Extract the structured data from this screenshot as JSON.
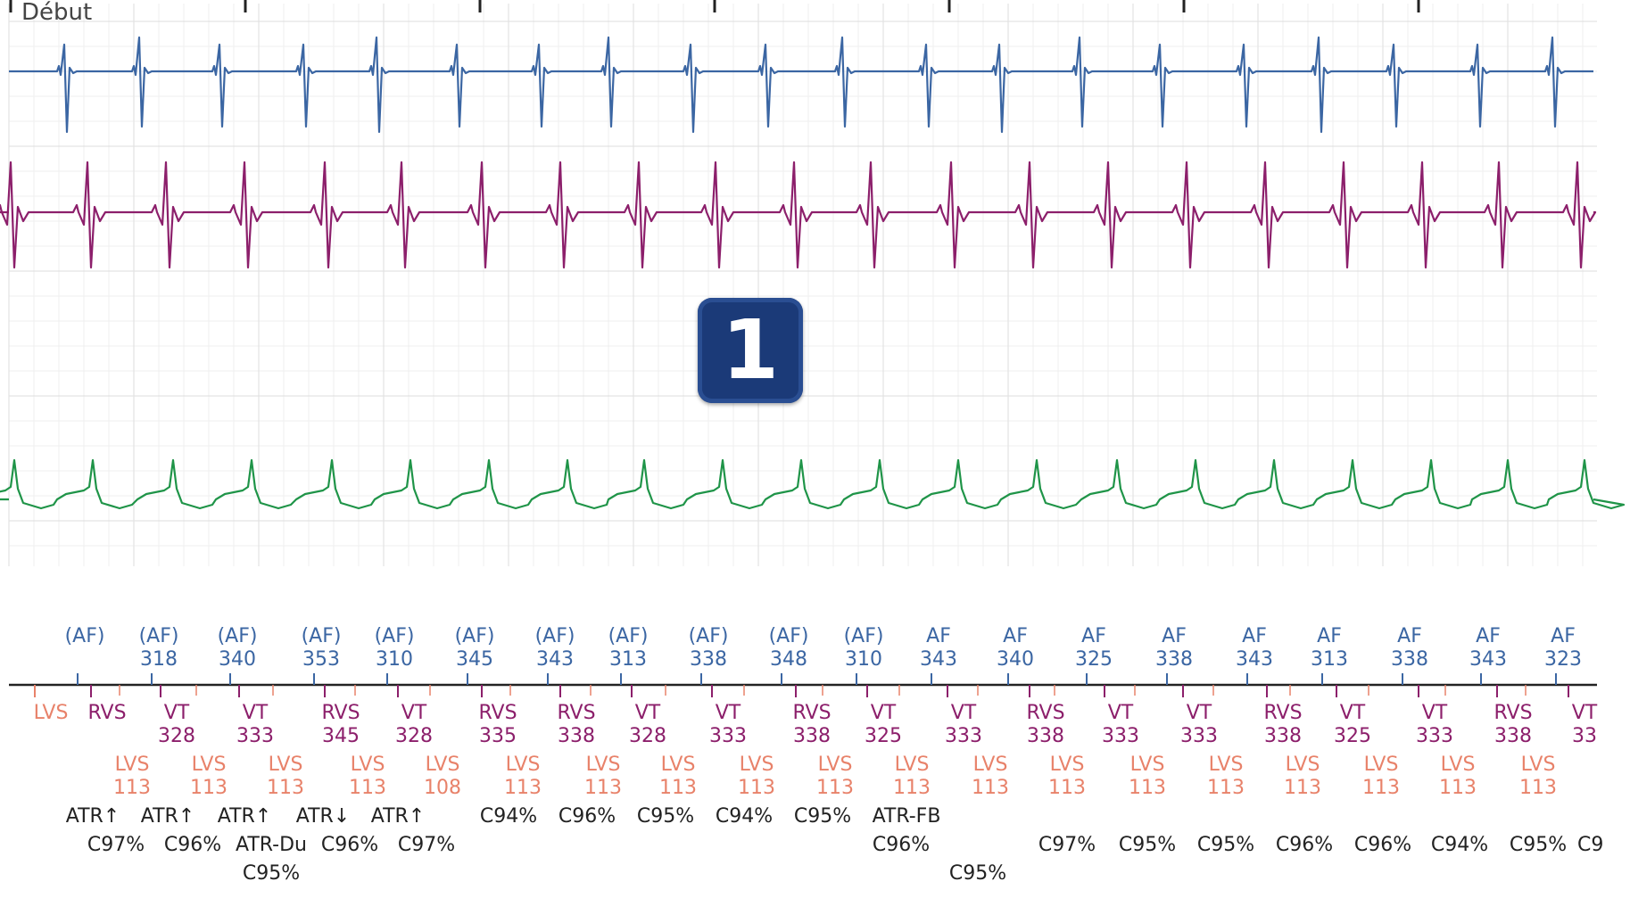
{
  "start_label": "Début",
  "badge_number": "1",
  "colors": {
    "atrial": "#3b66a3",
    "rv": "#8c1f6b",
    "surface": "#1f9448",
    "lv": "#e8826a",
    "status": "#222222",
    "grid_major": "#e3e3e3",
    "grid_minor": "#efefef"
  },
  "traces": [
    "atrial-egm-trace",
    "rv-egm-trace",
    "lv-egm-trace-blank",
    "surface-ecg-trace"
  ],
  "atrial_markers": [
    {
      "label": "(AF)",
      "interval": ""
    },
    {
      "label": "(AF)",
      "interval": "318"
    },
    {
      "label": "(AF)",
      "interval": "340"
    },
    {
      "label": "(AF)",
      "interval": "353"
    },
    {
      "label": "(AF)",
      "interval": "310"
    },
    {
      "label": "(AF)",
      "interval": "345"
    },
    {
      "label": "(AF)",
      "interval": "343"
    },
    {
      "label": "(AF)",
      "interval": "313"
    },
    {
      "label": "(AF)",
      "interval": "338"
    },
    {
      "label": "(AF)",
      "interval": "348"
    },
    {
      "label": "(AF)",
      "interval": "310"
    },
    {
      "label": "AF",
      "interval": "343"
    },
    {
      "label": "AF",
      "interval": "340"
    },
    {
      "label": "AF",
      "interval": "325"
    },
    {
      "label": "AF",
      "interval": "338"
    },
    {
      "label": "AF",
      "interval": "343"
    },
    {
      "label": "AF",
      "interval": "313"
    },
    {
      "label": "AF",
      "interval": "338"
    },
    {
      "label": "AF",
      "interval": "343"
    },
    {
      "label": "AF",
      "interval": "323"
    }
  ],
  "ventricular_markers": [
    {
      "label": "LVS",
      "interval": "",
      "kind": "lv"
    },
    {
      "label": "RVS",
      "interval": "",
      "kind": "rv"
    },
    {
      "label": "VT",
      "interval": "328",
      "kind": "rv"
    },
    {
      "label": "VT",
      "interval": "333",
      "kind": "rv"
    },
    {
      "label": "RVS",
      "interval": "345",
      "kind": "rv"
    },
    {
      "label": "VT",
      "interval": "328",
      "kind": "rv"
    },
    {
      "label": "RVS",
      "interval": "335",
      "kind": "rv"
    },
    {
      "label": "RVS",
      "interval": "338",
      "kind": "rv"
    },
    {
      "label": "VT",
      "interval": "328",
      "kind": "rv"
    },
    {
      "label": "VT",
      "interval": "333",
      "kind": "rv"
    },
    {
      "label": "RVS",
      "interval": "338",
      "kind": "rv"
    },
    {
      "label": "VT",
      "interval": "325",
      "kind": "rv"
    },
    {
      "label": "VT",
      "interval": "333",
      "kind": "rv"
    },
    {
      "label": "RVS",
      "interval": "338",
      "kind": "rv"
    },
    {
      "label": "VT",
      "interval": "333",
      "kind": "rv"
    },
    {
      "label": "VT",
      "interval": "333",
      "kind": "rv"
    },
    {
      "label": "RVS",
      "interval": "338",
      "kind": "rv"
    },
    {
      "label": "VT",
      "interval": "325",
      "kind": "rv"
    },
    {
      "label": "VT",
      "interval": "333",
      "kind": "rv"
    },
    {
      "label": "RVS",
      "interval": "338",
      "kind": "rv"
    },
    {
      "label": "VT",
      "interval": "33",
      "kind": "rv"
    }
  ],
  "lv_markers": [
    {
      "label": "LVS",
      "interval": "113"
    },
    {
      "label": "LVS",
      "interval": "113"
    },
    {
      "label": "LVS",
      "interval": "113"
    },
    {
      "label": "LVS",
      "interval": "113"
    },
    {
      "label": "LVS",
      "interval": "108"
    },
    {
      "label": "LVS",
      "interval": "113"
    },
    {
      "label": "LVS",
      "interval": "113"
    },
    {
      "label": "LVS",
      "interval": "113"
    },
    {
      "label": "LVS",
      "interval": "113"
    },
    {
      "label": "LVS",
      "interval": "113"
    },
    {
      "label": "LVS",
      "interval": "113"
    },
    {
      "label": "LVS",
      "interval": "113"
    },
    {
      "label": "LVS",
      "interval": "113"
    },
    {
      "label": "LVS",
      "interval": "113"
    },
    {
      "label": "LVS",
      "interval": "113"
    },
    {
      "label": "LVS",
      "interval": "113"
    },
    {
      "label": "LVS",
      "interval": "113"
    },
    {
      "label": "LVS",
      "interval": "113"
    },
    {
      "label": "LVS",
      "interval": "113"
    }
  ],
  "status_markers": [
    {
      "lines": [
        "ATR↑",
        "C97%"
      ]
    },
    {
      "lines": [
        "ATR↑",
        "C96%"
      ]
    },
    {
      "lines": [
        "ATR↑",
        "ATR-Du",
        "C95%"
      ]
    },
    {
      "lines": [
        "ATR↓",
        "C96%"
      ]
    },
    {
      "lines": [
        "ATR↑",
        "C97%"
      ]
    },
    {
      "lines": [
        "C94%"
      ]
    },
    {
      "lines": [
        "C96%"
      ]
    },
    {
      "lines": [
        "C95%"
      ]
    },
    {
      "lines": [
        "C94%"
      ]
    },
    {
      "lines": [
        "C95%"
      ]
    },
    {
      "lines": [
        "ATR-FB",
        "C96%"
      ]
    },
    {
      "lines": [
        "C95%"
      ]
    },
    {
      "lines": [
        "C97%"
      ]
    },
    {
      "lines": [
        "C95%"
      ]
    },
    {
      "lines": [
        "C95%"
      ]
    },
    {
      "lines": [
        "C96%"
      ]
    },
    {
      "lines": [
        "C96%"
      ]
    },
    {
      "lines": [
        "C94%"
      ]
    },
    {
      "lines": [
        "C95%"
      ]
    },
    {
      "lines": [
        "C9"
      ]
    }
  ]
}
